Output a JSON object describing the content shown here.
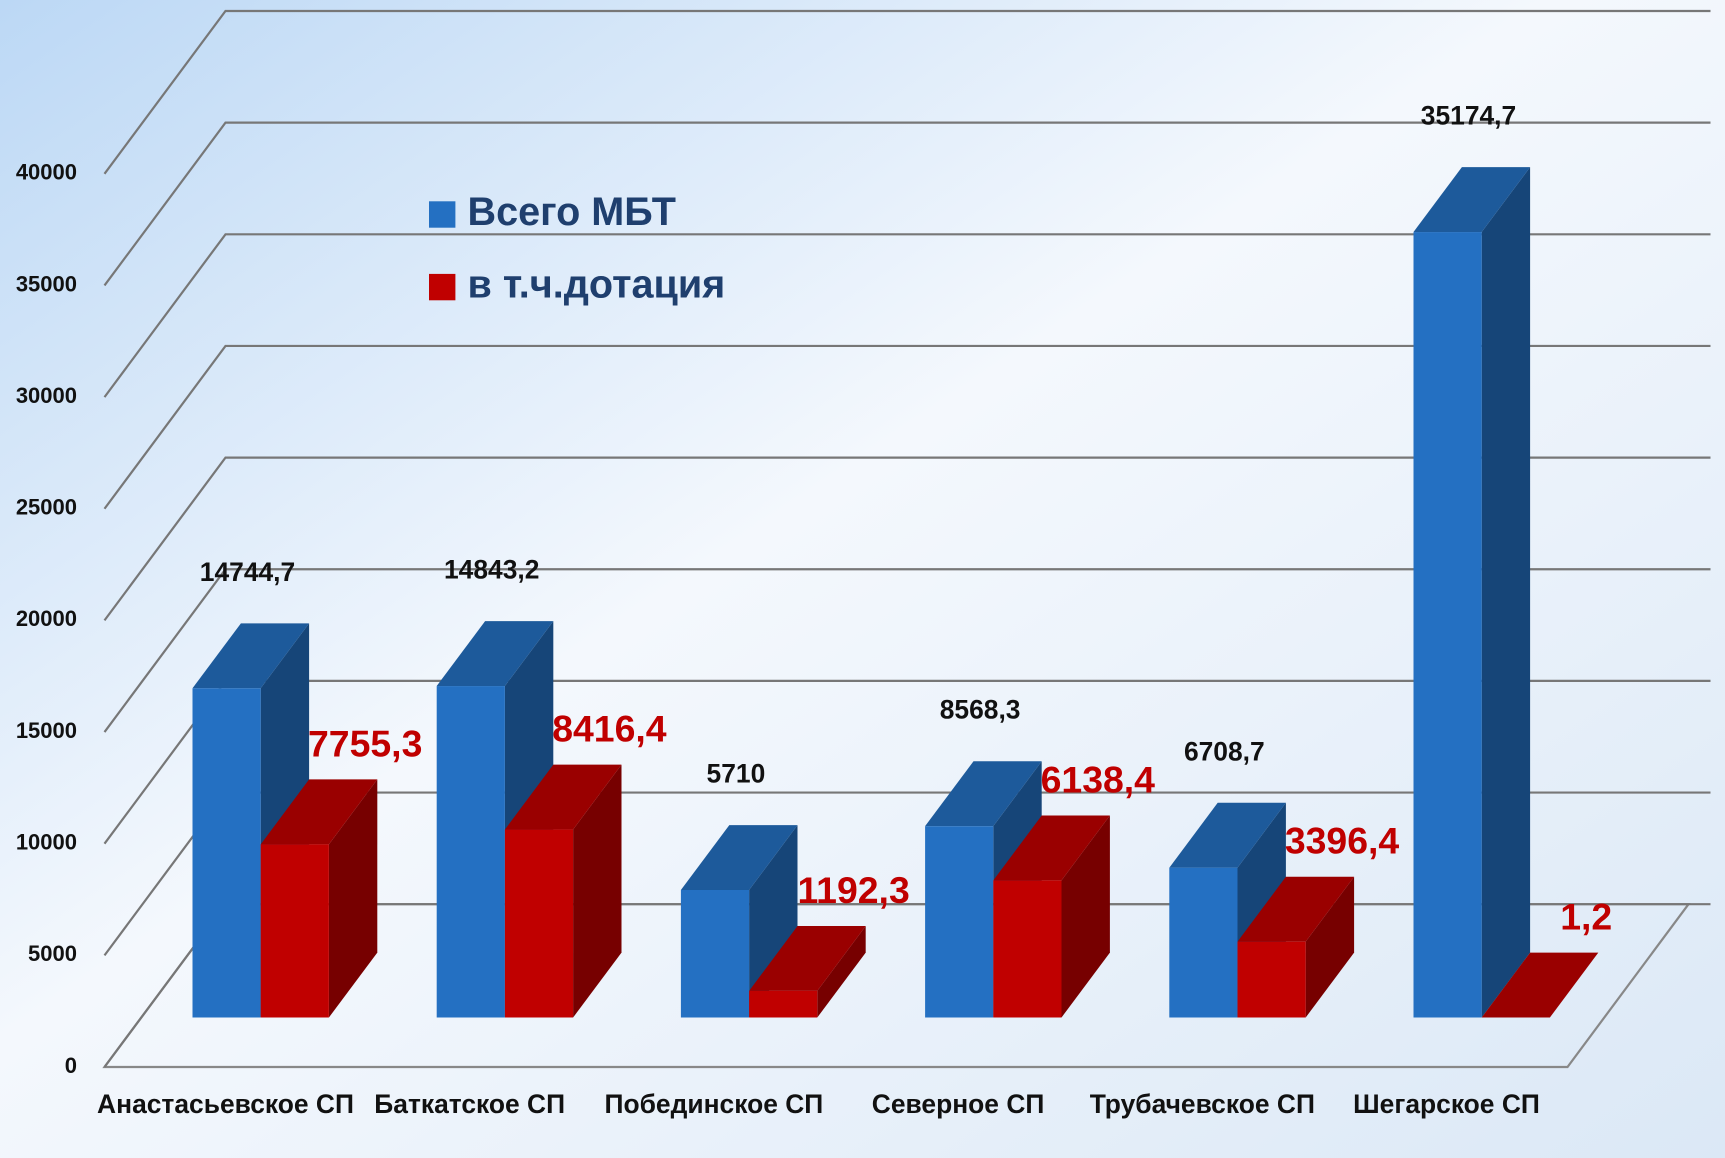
{
  "chart_data": {
    "type": "bar3d",
    "categories": [
      "Анастасьевское СП",
      "Баткатское СП",
      "Побединское СП",
      "Северное СП",
      "Трубачевское СП",
      "Шегарское СП"
    ],
    "series": [
      {
        "name": "Всего МБТ",
        "color": "#2470c2",
        "values": [
          14744.7,
          14843.2,
          5710,
          8568.3,
          6708.7,
          35174.7
        ],
        "value_labels": [
          "14744,7",
          "14843,2",
          "5710",
          "8568,3",
          "6708,7",
          "35174,7"
        ]
      },
      {
        "name": "в т.ч.дотация",
        "color": "#c00000",
        "values": [
          7755.3,
          8416.4,
          1192.3,
          6138.4,
          3396.4,
          1.2
        ],
        "value_labels": [
          "7755,3",
          "8416,4",
          "1192,3",
          "6138,4",
          "3396,4",
          "1,2"
        ]
      }
    ],
    "ylim": [
      0,
      40000
    ],
    "yticks": [
      0,
      5000,
      10000,
      15000,
      20000,
      25000,
      30000,
      35000,
      40000
    ],
    "grid": true
  }
}
